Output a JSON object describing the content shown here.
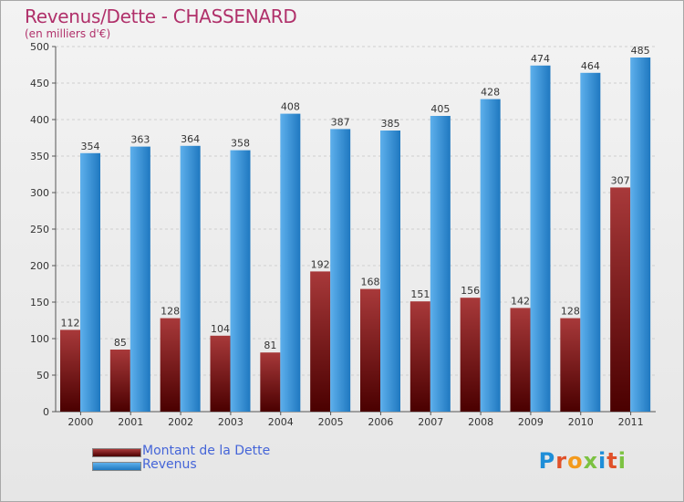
{
  "title": "Revenus/Dette - CHASSENARD",
  "subtitle": "(en milliers d'€)",
  "logo": {
    "text": "Proxiti",
    "colors": [
      "#1f8ed8",
      "#e0512a",
      "#f39a1c",
      "#7cc242",
      "#1f8ed8",
      "#e0512a",
      "#7cc242"
    ]
  },
  "colors": {
    "dette_dark": "#4a0000",
    "dette_light": "#a8393a",
    "revenus_dark": "#1f78c0",
    "revenus_light": "#5eb0ec",
    "title": "#b0306a",
    "legend_text": "#4565d8"
  },
  "legend": [
    {
      "label": "Montant de la Dette",
      "color": "dette"
    },
    {
      "label": "Revenus",
      "color": "revenus"
    }
  ],
  "chart_data": {
    "type": "bar",
    "title": "Revenus/Dette - CHASSENARD",
    "subtitle": "(en milliers d'€)",
    "categories": [
      "2000",
      "2001",
      "2002",
      "2003",
      "2004",
      "2005",
      "2006",
      "2007",
      "2008",
      "2009",
      "2010",
      "2011"
    ],
    "series": [
      {
        "name": "Montant de la Dette",
        "values": [
          112,
          85,
          128,
          104,
          81,
          192,
          168,
          151,
          156,
          142,
          128,
          307
        ]
      },
      {
        "name": "Revenus",
        "values": [
          354,
          363,
          364,
          358,
          408,
          387,
          385,
          405,
          428,
          474,
          464,
          485
        ]
      }
    ],
    "ylim": [
      0,
      500
    ],
    "yticks": [
      0,
      50,
      100,
      150,
      200,
      250,
      300,
      350,
      400,
      450,
      500
    ],
    "grid": true,
    "legend_position": "bottom-left",
    "data_labels": true
  }
}
